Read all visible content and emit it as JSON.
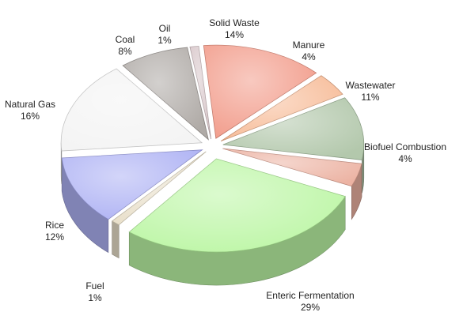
{
  "chart_data": {
    "type": "pie",
    "title": "",
    "exploded": true,
    "three_d": true,
    "slices": [
      {
        "name": "Solid Waste",
        "value": 14,
        "label": "14%",
        "color": "#f0907c"
      },
      {
        "name": "Manure",
        "value": 4,
        "label": "4%",
        "color": "#f6b48c"
      },
      {
        "name": "Wastewater",
        "value": 11,
        "label": "11%",
        "color": "#a8c0a0"
      },
      {
        "name": "Biofuel Combustion",
        "value": 4,
        "label": "4%",
        "color": "#e9a896"
      },
      {
        "name": "Enteric Fermentation",
        "value": 29,
        "label": "29%",
        "color": "#b4f59a"
      },
      {
        "name": "Fuel",
        "value": 1,
        "label": "1%",
        "color": "#e6dcc4"
      },
      {
        "name": "Rice",
        "value": 12,
        "label": "12%",
        "color": "#a4a8f2"
      },
      {
        "name": "Natural Gas",
        "value": 16,
        "label": "16%",
        "color": "#f2f2f2"
      },
      {
        "name": "Coal",
        "value": 8,
        "label": "8%",
        "color": "#a49e9a"
      },
      {
        "name": "Oil",
        "value": 1,
        "label": "1%",
        "color": "#d4c0c4"
      }
    ]
  }
}
